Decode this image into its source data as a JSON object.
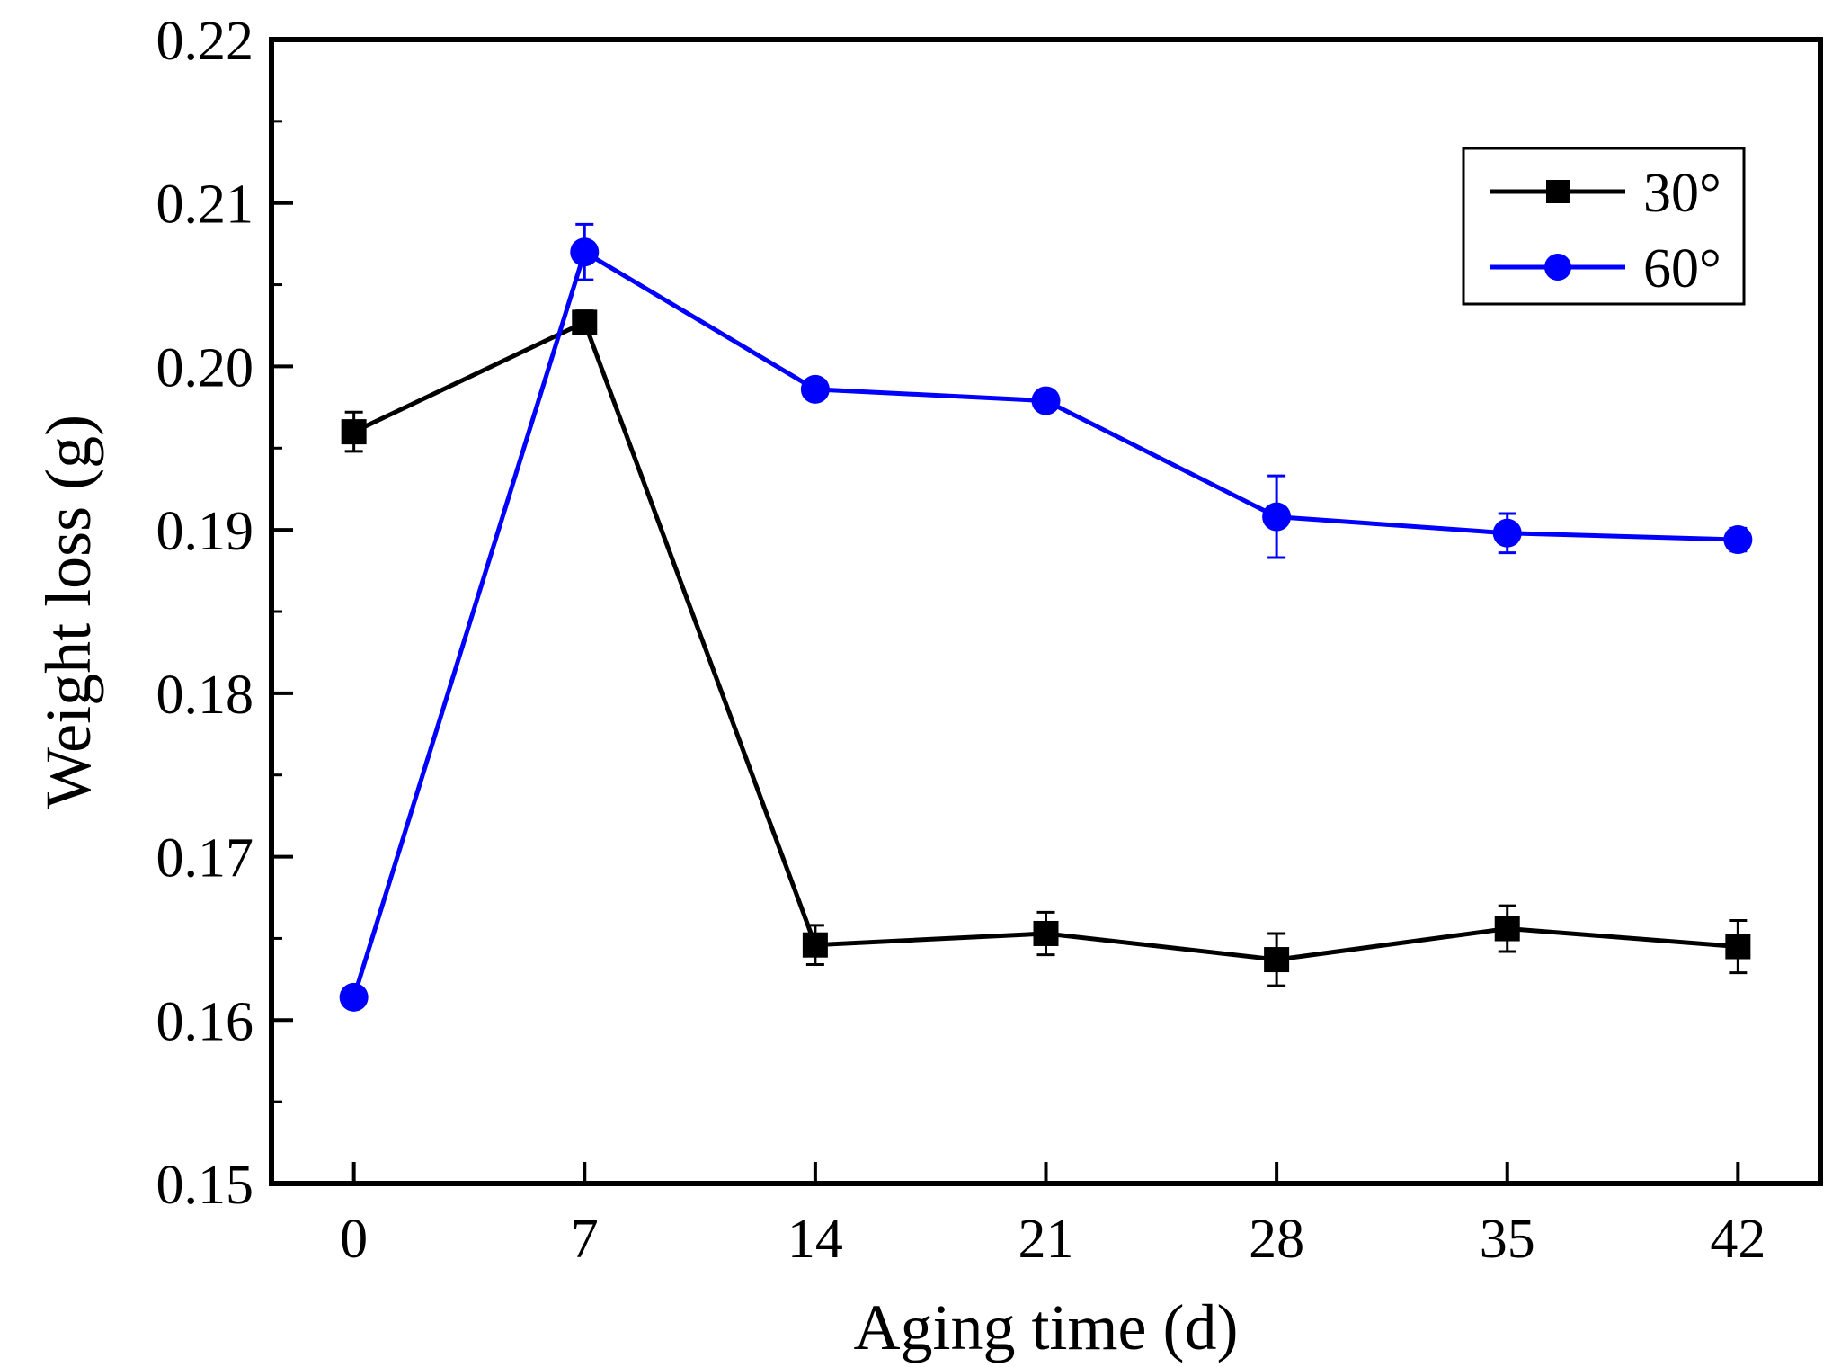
{
  "chart_data": {
    "type": "line",
    "title": "",
    "xlabel": "Aging time (d)",
    "ylabel": "Weight loss (g)",
    "x": [
      0,
      7,
      14,
      21,
      28,
      35,
      42
    ],
    "xlim": [
      -2.5,
      44.5
    ],
    "ylim": [
      0.15,
      0.22
    ],
    "xticks": [
      "0",
      "7",
      "14",
      "21",
      "28",
      "35",
      "42"
    ],
    "yticks": [
      "0.15",
      "0.16",
      "0.17",
      "0.18",
      "0.19",
      "0.20",
      "0.21",
      "0.22"
    ],
    "grid": false,
    "legend_position": "top-right",
    "series": [
      {
        "name": "30°",
        "color": "#000000",
        "marker": "square",
        "values": [
          0.196,
          0.2027,
          0.1646,
          0.1653,
          0.1637,
          0.1656,
          0.1645
        ],
        "errors": [
          0.0012,
          0.0007,
          0.0012,
          0.0013,
          0.0016,
          0.0014,
          0.0016
        ]
      },
      {
        "name": "60°",
        "color": "#0000ff",
        "marker": "circle",
        "values": [
          0.1614,
          0.207,
          0.1986,
          0.1979,
          0.1908,
          0.1898,
          0.1894
        ],
        "errors": [
          0.0,
          0.0017,
          0.0,
          0.0,
          0.0025,
          0.0012,
          0.0007
        ]
      }
    ]
  }
}
